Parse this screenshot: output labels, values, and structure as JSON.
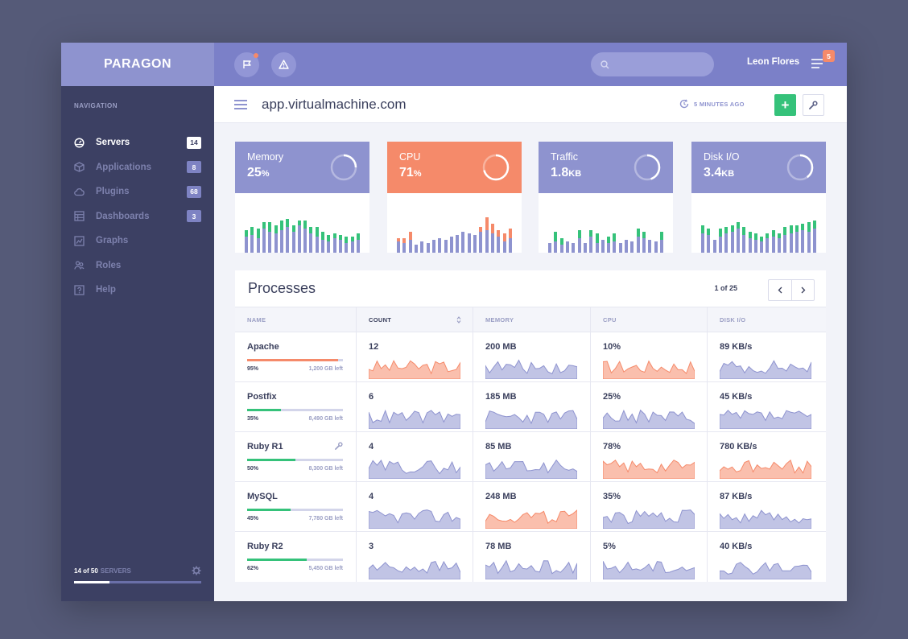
{
  "brand": "PARAGON",
  "sidebar": {
    "heading": "NAVIGATION",
    "items": [
      {
        "label": "Servers",
        "badge": "14",
        "icon": "dashboard-gauge-icon",
        "active": true
      },
      {
        "label": "Applications",
        "badge": "8",
        "icon": "cube-icon",
        "active": false
      },
      {
        "label": "Plugins",
        "badge": "68",
        "icon": "cloud-icon",
        "active": false
      },
      {
        "label": "Dashboards",
        "badge": "3",
        "icon": "grid-icon",
        "active": false
      },
      {
        "label": "Graphs",
        "badge": "",
        "icon": "chart-icon",
        "active": false
      },
      {
        "label": "Roles",
        "badge": "",
        "icon": "users-icon",
        "active": false
      },
      {
        "label": "Help",
        "badge": "",
        "icon": "help-icon",
        "active": false
      }
    ],
    "footer": {
      "count": "14 of 50",
      "word": "SERVERS",
      "fraction": 0.28
    }
  },
  "topbar": {
    "search_placeholder": "",
    "user_name": "Leon Flores",
    "notifications": "5"
  },
  "subbar": {
    "domain": "app.virtualmachine.com",
    "updated": "5 MINUTES AGO",
    "add_label": "+"
  },
  "colors": {
    "accent": "#8e93cf",
    "hot": "#f58a6a",
    "green": "#35c27a",
    "sidebar": "#3c4063",
    "topbar": "#7b80c8"
  },
  "cards": [
    {
      "title": "Memory",
      "value": "25",
      "unit": "%",
      "ring": 0.25,
      "hot": false,
      "bars": [
        [
          20,
          8
        ],
        [
          22,
          10
        ],
        [
          18,
          12
        ],
        [
          30,
          8
        ],
        [
          26,
          12
        ],
        [
          24,
          10
        ],
        [
          28,
          12
        ],
        [
          32,
          10
        ],
        [
          26,
          8
        ],
        [
          34,
          6
        ],
        [
          30,
          10
        ],
        [
          24,
          8
        ],
        [
          20,
          12
        ],
        [
          16,
          10
        ],
        [
          14,
          8
        ],
        [
          18,
          6
        ],
        [
          16,
          6
        ],
        [
          12,
          8
        ],
        [
          14,
          6
        ],
        [
          16,
          8
        ]
      ]
    },
    {
      "title": "CPU",
      "value": "71",
      "unit": "%",
      "ring": 0.71,
      "hot": true,
      "bars": [
        [
          14,
          4
        ],
        [
          12,
          6
        ],
        [
          16,
          10
        ],
        [
          10,
          0
        ],
        [
          14,
          0
        ],
        [
          12,
          0
        ],
        [
          16,
          0
        ],
        [
          18,
          0
        ],
        [
          16,
          0
        ],
        [
          20,
          0
        ],
        [
          22,
          0
        ],
        [
          26,
          0
        ],
        [
          24,
          0
        ],
        [
          22,
          0
        ],
        [
          26,
          6
        ],
        [
          28,
          16
        ],
        [
          24,
          12
        ],
        [
          20,
          8
        ],
        [
          14,
          10
        ],
        [
          18,
          12
        ]
      ]
    },
    {
      "title": "Traffic",
      "value": "1.8",
      "unit": "KB",
      "ring": 0.45,
      "hot": false,
      "bars": [
        [
          12,
          0
        ],
        [
          14,
          12
        ],
        [
          10,
          8
        ],
        [
          14,
          0
        ],
        [
          12,
          0
        ],
        [
          18,
          10
        ],
        [
          12,
          0
        ],
        [
          20,
          8
        ],
        [
          12,
          12
        ],
        [
          16,
          0
        ],
        [
          12,
          8
        ],
        [
          14,
          10
        ],
        [
          12,
          0
        ],
        [
          16,
          0
        ],
        [
          14,
          0
        ],
        [
          20,
          10
        ],
        [
          18,
          8
        ],
        [
          16,
          0
        ],
        [
          14,
          0
        ],
        [
          16,
          10
        ]
      ]
    },
    {
      "title": "Disk I/O",
      "value": "3.4",
      "unit": "KB",
      "ring": 0.4,
      "hot": false,
      "bars": [
        [
          24,
          10
        ],
        [
          22,
          8
        ],
        [
          16,
          0
        ],
        [
          20,
          10
        ],
        [
          24,
          8
        ],
        [
          26,
          8
        ],
        [
          30,
          8
        ],
        [
          22,
          10
        ],
        [
          18,
          8
        ],
        [
          16,
          8
        ],
        [
          14,
          6
        ],
        [
          18,
          6
        ],
        [
          20,
          8
        ],
        [
          18,
          6
        ],
        [
          22,
          10
        ],
        [
          24,
          10
        ],
        [
          26,
          8
        ],
        [
          28,
          8
        ],
        [
          26,
          12
        ],
        [
          30,
          10
        ]
      ]
    }
  ],
  "processes": {
    "title": "Processes",
    "pager": "1 of 25",
    "columns": [
      "NAME",
      "COUNT",
      "MEMORY",
      "CPU",
      "DISK I/O"
    ],
    "rows": [
      {
        "name": "Apache",
        "pct": "95%",
        "fraction": 0.95,
        "left": "1,200 GB left",
        "bar": "hot",
        "count": "12",
        "memory": "200 MB",
        "cpu": "10%",
        "disk": "89 KB/s",
        "tone": [
          "hot",
          "accent",
          "hot",
          "accent"
        ],
        "wrench": false
      },
      {
        "name": "Postfix",
        "pct": "35%",
        "fraction": 0.35,
        "left": "8,490 GB left",
        "bar": "green",
        "count": "6",
        "memory": "185 MB",
        "cpu": "25%",
        "disk": "45 KB/s",
        "tone": [
          "accent",
          "accent",
          "accent",
          "accent"
        ],
        "wrench": false
      },
      {
        "name": "Ruby R1",
        "pct": "50%",
        "fraction": 0.5,
        "left": "8,300 GB left",
        "bar": "green",
        "count": "4",
        "memory": "85 MB",
        "cpu": "78%",
        "disk": "780 KB/s",
        "tone": [
          "accent",
          "accent",
          "hot",
          "hot"
        ],
        "wrench": true
      },
      {
        "name": "MySQL",
        "pct": "45%",
        "fraction": 0.45,
        "left": "7,780 GB left",
        "bar": "green",
        "count": "4",
        "memory": "248 MB",
        "cpu": "35%",
        "disk": "87 KB/s",
        "tone": [
          "accent",
          "hot",
          "accent",
          "accent"
        ],
        "wrench": false
      },
      {
        "name": "Ruby R2",
        "pct": "62%",
        "fraction": 0.62,
        "left": "5,450 GB left",
        "bar": "green",
        "count": "3",
        "memory": "78 MB",
        "cpu": "5%",
        "disk": "40 KB/s",
        "tone": [
          "accent",
          "accent",
          "accent",
          "accent"
        ],
        "wrench": false
      }
    ]
  }
}
